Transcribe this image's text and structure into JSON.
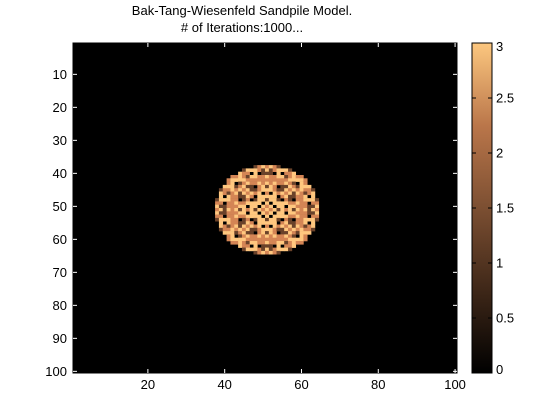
{
  "chart_data": {
    "type": "heatmap",
    "title": "Bak-Tang-Wiesenfeld Sandpile Model.",
    "subtitle": "# of Iterations:1000...",
    "xlabel": "",
    "ylabel": "",
    "grid_size": 101,
    "xlim": [
      0.5,
      100.5
    ],
    "ylim": [
      0.5,
      100.5
    ],
    "y_direction": "reversed",
    "x_ticks": [
      20,
      40,
      60,
      80,
      100
    ],
    "y_ticks": [
      10,
      20,
      30,
      40,
      50,
      60,
      70,
      80,
      90,
      100
    ],
    "colorbar": {
      "range": [
        0,
        3
      ],
      "ticks": [
        0,
        0.5,
        1,
        1.5,
        2,
        2.5,
        3
      ],
      "tick_labels": [
        "0",
        "0.5",
        "1",
        "1.5",
        "2",
        "2.5",
        "3"
      ],
      "colormap": "copper",
      "placement": "right"
    },
    "background_value": 0,
    "pile_center": [
      51,
      51
    ],
    "pile_radius": 13.5,
    "value_range_inside_pile": [
      0,
      3
    ]
  }
}
